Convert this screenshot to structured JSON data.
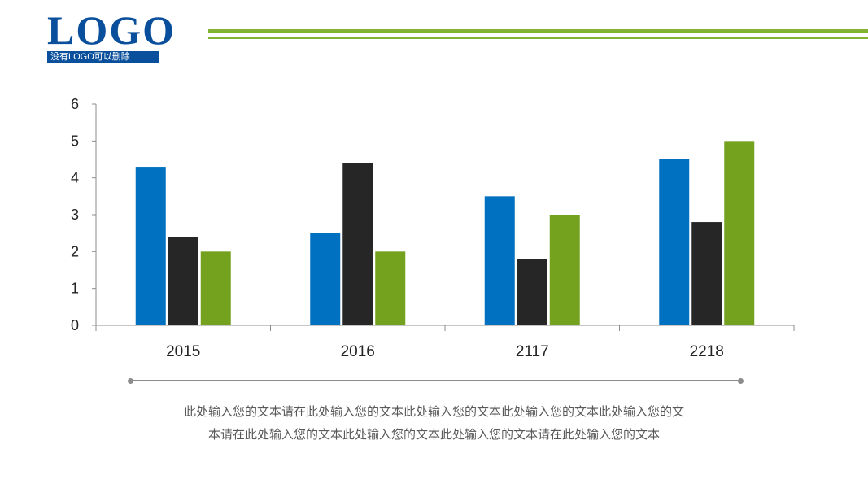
{
  "logo": {
    "text": "LOGO",
    "subtitle": "没有LOGO可以删除"
  },
  "colors": {
    "brand_blue": "#0a4f9b",
    "accent_green": "#84b332"
  },
  "chart_data": {
    "type": "bar",
    "categories": [
      "2015",
      "2016",
      "2117",
      "2218"
    ],
    "series": [
      {
        "color": "#0070c0",
        "values": [
          4.3,
          2.5,
          3.5,
          4.5
        ]
      },
      {
        "color": "#262626",
        "values": [
          2.4,
          4.4,
          1.8,
          2.8
        ]
      },
      {
        "color": "#74a11e",
        "values": [
          2.0,
          2.0,
          3.0,
          5.0
        ]
      }
    ],
    "yticks": [
      "0",
      "1",
      "2",
      "3",
      "4",
      "5",
      "6"
    ],
    "ylim": [
      0,
      6
    ],
    "grid": false,
    "legend": "none"
  },
  "caption": {
    "line1": "此处输入您的文本请在此处输入您的文本此处输入您的文本此处输入您的文本此处输入您的文",
    "line2": "本请在此处输入您的文本此处输入您的文本此处输入您的文本请在此处输入您的文本"
  }
}
